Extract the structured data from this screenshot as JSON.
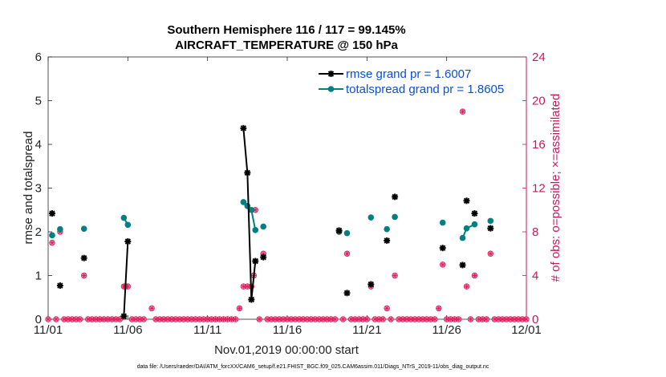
{
  "chart_data": {
    "type": "line",
    "title": "Southern Hemisphere 116 / 117 = 99.145%",
    "subtitle": "AIRCRAFT_TEMPERATURE @ 150 hPa",
    "xlabel": "Nov.01,2019 00:00:00 start",
    "ylabel": "rmse and totalspread",
    "ylabel_right": "# of obs: o=possible; ×=assimilated",
    "footer": "data file: /Users/raeder/DAI/ATM_forcXX/CAM6_setup/f.e21.FHIST_BGC.f09_025.CAM6assim.011/Diags_NTrS_2019-11/obs_diag_output.nc",
    "xlim": [
      0,
      30
    ],
    "ylim": [
      0,
      6
    ],
    "ylim_right": [
      0,
      24
    ],
    "x_ticks": [
      0,
      5,
      10,
      15,
      20,
      25,
      30
    ],
    "x_tick_labels": [
      "11/01",
      "11/06",
      "11/11",
      "11/16",
      "11/21",
      "11/26",
      "12/01"
    ],
    "y_ticks": [
      0,
      1,
      2,
      3,
      4,
      5,
      6
    ],
    "y_tick_labels": [
      "0",
      "1",
      "2",
      "3",
      "4",
      "5",
      "6"
    ],
    "y_right_ticks": [
      0,
      4,
      8,
      12,
      16,
      20,
      24
    ],
    "y_right_tick_labels": [
      "0",
      "4",
      "8",
      "12",
      "16",
      "20",
      "24"
    ],
    "legend_position": "top-right",
    "colors": {
      "rmse": "#000000",
      "spread": "#008080",
      "obs": "#e0205e",
      "axis_right": "#c8175e",
      "legend_text": "#0a4fd6"
    },
    "series": [
      {
        "name": "rmse grand pr = 1.6007",
        "key": "rmse",
        "x": [
          0.25,
          0.75,
          2.25,
          4.75,
          5.0,
          12.25,
          12.5,
          12.75,
          13.0,
          13.5,
          18.25,
          18.75,
          20.25,
          21.25,
          21.75,
          24.75,
          26.0,
          26.25,
          26.75,
          27.75
        ],
        "values": [
          2.42,
          0.77,
          1.4,
          0.07,
          1.78,
          4.37,
          3.35,
          0.45,
          1.33,
          1.42,
          2.03,
          0.6,
          0.8,
          1.8,
          2.8,
          1.63,
          1.24,
          2.71,
          2.42,
          2.08
        ],
        "segments": [
          [
            4.75,
            5.0
          ],
          [
            12.25,
            12.5,
            12.75,
            13.0
          ]
        ]
      },
      {
        "name": "totalspread grand pr = 1.8605",
        "key": "spread",
        "x": [
          0.25,
          0.75,
          2.25,
          4.75,
          5.0,
          12.25,
          12.5,
          12.75,
          13.0,
          13.5,
          18.25,
          18.75,
          20.25,
          21.25,
          21.75,
          24.75,
          26.0,
          26.25,
          26.75,
          27.75
        ],
        "values": [
          1.92,
          2.06,
          2.07,
          2.32,
          2.16,
          2.68,
          2.59,
          2.5,
          2.04,
          2.12,
          2.0,
          1.97,
          2.33,
          2.06,
          2.34,
          2.21,
          1.86,
          2.08,
          2.17,
          2.25
        ],
        "segments": [
          [
            4.75,
            5.0
          ],
          [
            12.25,
            12.5,
            12.75,
            13.0
          ],
          [
            26.0,
            26.25,
            26.75
          ]
        ]
      }
    ],
    "obs": {
      "x": [
        0.25,
        0.75,
        2.25,
        4.75,
        4.85,
        5.0,
        6.5,
        12.0,
        12.25,
        12.5,
        12.75,
        12.9,
        13.0,
        13.5,
        18.25,
        18.75,
        20.25,
        21.25,
        21.75,
        24.5,
        24.75,
        26.0,
        26.25,
        26.75,
        27.75
      ],
      "values": [
        7,
        8,
        4,
        3,
        3,
        3,
        1,
        1,
        3,
        3,
        3,
        4,
        10,
        6,
        8,
        6,
        3,
        1,
        4,
        1,
        5,
        19,
        3,
        4,
        6
      ],
      "zero_x": [
        0.0,
        0.5,
        1.0,
        1.25,
        1.5,
        1.75,
        2.0,
        2.5,
        2.75,
        3.0,
        3.25,
        3.5,
        3.75,
        4.0,
        4.25,
        4.5,
        5.25,
        5.5,
        5.75,
        6.0,
        6.75,
        7.0,
        7.25,
        7.5,
        7.75,
        8.0,
        8.25,
        8.5,
        8.75,
        9.0,
        9.25,
        9.5,
        9.75,
        10.0,
        10.25,
        10.5,
        10.75,
        11.0,
        11.25,
        11.5,
        11.75,
        13.25,
        13.75,
        14.0,
        14.25,
        14.5,
        14.75,
        15.0,
        15.25,
        15.5,
        15.75,
        16.0,
        16.25,
        16.5,
        16.75,
        17.0,
        17.25,
        17.5,
        17.75,
        18.0,
        18.5,
        19.0,
        19.25,
        19.5,
        19.75,
        20.0,
        20.5,
        20.75,
        21.0,
        21.5,
        22.0,
        22.25,
        22.5,
        22.75,
        23.0,
        23.25,
        23.5,
        23.75,
        24.0,
        24.25,
        25.0,
        25.25,
        25.5,
        25.75,
        26.5,
        27.0,
        27.25,
        27.5,
        28.0,
        28.25,
        28.5,
        28.75,
        29.0,
        29.25,
        29.5,
        29.75,
        30.0
      ]
    }
  }
}
